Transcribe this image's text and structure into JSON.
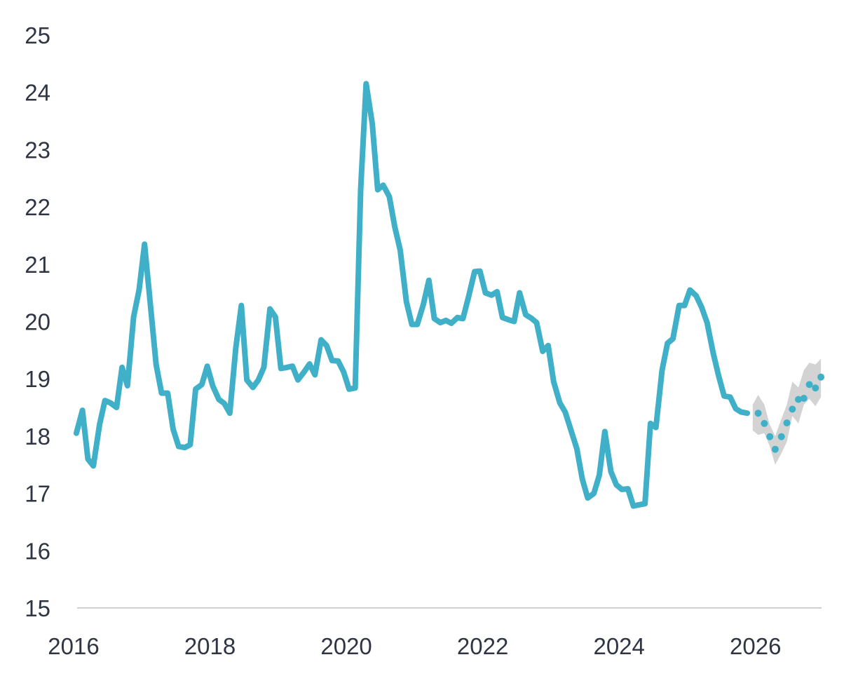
{
  "chart_data": {
    "type": "line",
    "title": "",
    "xlabel": "",
    "ylabel": "",
    "xlim": [
      2016.0,
      2027.0
    ],
    "ylim": [
      15,
      25
    ],
    "y_ticks": [
      "15",
      "16",
      "17",
      "18",
      "19",
      "20",
      "21",
      "22",
      "23",
      "24",
      "25"
    ],
    "x_ticks": [
      "2016",
      "2018",
      "2020",
      "2022",
      "2024",
      "2026"
    ],
    "grid": false,
    "colors": {
      "line": "#3fb0c7",
      "forecast_dots": "#3fb0c7",
      "forecast_band": "#d3d3d3",
      "axis": "#d0d0d0",
      "text": "#2f3542"
    },
    "series": [
      {
        "kind": "actual",
        "x": [
          2016.04,
          2016.13,
          2016.21,
          2016.29,
          2016.38,
          2016.46,
          2016.54,
          2016.63,
          2016.71,
          2016.79,
          2016.88,
          2016.96,
          2017.04,
          2017.13,
          2017.21,
          2017.29,
          2017.38,
          2017.46,
          2017.54,
          2017.63,
          2017.71,
          2017.79,
          2017.88,
          2017.96,
          2018.04,
          2018.13,
          2018.21,
          2018.29,
          2018.38,
          2018.46,
          2018.54,
          2018.63,
          2018.71,
          2018.79,
          2018.88,
          2018.96,
          2019.04,
          2019.13,
          2019.21,
          2019.29,
          2019.38,
          2019.46,
          2019.54,
          2019.63,
          2019.71,
          2019.79,
          2019.88,
          2019.96,
          2020.04,
          2020.13,
          2020.21,
          2020.29,
          2020.38,
          2020.46,
          2020.54,
          2020.63,
          2020.71,
          2020.79,
          2020.88,
          2020.96,
          2021.04,
          2021.13,
          2021.21,
          2021.29,
          2021.38,
          2021.46,
          2021.54,
          2021.63,
          2021.71,
          2021.79,
          2021.88,
          2021.96,
          2022.04,
          2022.13,
          2022.21,
          2022.29,
          2022.38,
          2022.46,
          2022.54,
          2022.63,
          2022.71,
          2022.79,
          2022.88,
          2022.96,
          2023.04,
          2023.13,
          2023.21,
          2023.29,
          2023.38,
          2023.46,
          2023.54,
          2023.63,
          2023.71,
          2023.79,
          2023.88,
          2023.96,
          2024.04,
          2024.13,
          2024.21,
          2024.29,
          2024.38,
          2024.46,
          2024.54,
          2024.63,
          2024.71,
          2024.79,
          2024.88,
          2024.96,
          2025.04,
          2025.13,
          2025.21,
          2025.29,
          2025.38,
          2025.46,
          2025.54,
          2025.63,
          2025.71,
          2025.79,
          2025.88
        ],
        "y": [
          18.05,
          18.45,
          17.6,
          17.48,
          18.2,
          18.62,
          18.58,
          18.5,
          19.2,
          18.88,
          20.08,
          20.55,
          21.35,
          20.25,
          19.25,
          18.75,
          18.75,
          18.12,
          17.82,
          17.8,
          17.85,
          18.82,
          18.9,
          19.22,
          18.88,
          18.64,
          18.57,
          18.4,
          19.55,
          20.28,
          18.98,
          18.85,
          18.98,
          19.2,
          20.22,
          20.08,
          19.18,
          19.2,
          19.22,
          18.98,
          19.12,
          19.26,
          19.07,
          19.68,
          19.58,
          19.32,
          19.31,
          19.12,
          18.82,
          18.84,
          22.3,
          24.15,
          23.45,
          22.3,
          22.38,
          22.18,
          21.65,
          21.25,
          20.35,
          19.95,
          19.95,
          20.3,
          20.72,
          20.05,
          19.98,
          20.02,
          19.97,
          20.07,
          20.05,
          20.42,
          20.87,
          20.88,
          20.5,
          20.46,
          20.52,
          20.07,
          20.03,
          20.0,
          20.5,
          20.12,
          20.06,
          19.98,
          19.48,
          19.58,
          18.95,
          18.58,
          18.42,
          18.12,
          17.78,
          17.25,
          16.92,
          17.0,
          17.32,
          18.08,
          17.38,
          17.15,
          17.07,
          17.08,
          16.78,
          16.8,
          16.82,
          18.22,
          18.15,
          19.15,
          19.62,
          19.7,
          20.28,
          20.28,
          20.55,
          20.45,
          20.25,
          19.98,
          19.45,
          19.05,
          18.7,
          18.68,
          18.48,
          18.42,
          18.4
        ]
      },
      {
        "kind": "forecast",
        "x": [
          2025.96,
          2026.04,
          2026.13,
          2026.21,
          2026.29,
          2026.38,
          2026.46,
          2026.54,
          2026.63,
          2026.71,
          2026.79,
          2026.88,
          2026.96
        ],
        "y": [
          18.4,
          18.4,
          18.22,
          17.99,
          17.77,
          17.99,
          18.23,
          18.47,
          18.64,
          18.66,
          18.9,
          18.84,
          19.03
        ],
        "lower": [
          18.1,
          18.02,
          18.05,
          17.82,
          17.5,
          17.7,
          17.9,
          18.35,
          18.22,
          18.55,
          18.65,
          18.52,
          18.68
        ],
        "upper": [
          18.55,
          18.72,
          18.55,
          18.2,
          18.0,
          18.3,
          18.55,
          18.95,
          18.85,
          19.15,
          19.28,
          19.25,
          19.35
        ]
      }
    ]
  }
}
